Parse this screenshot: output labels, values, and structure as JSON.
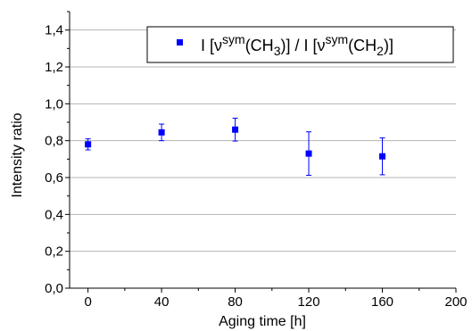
{
  "chart_data": {
    "type": "scatter",
    "title": "",
    "xlabel": "Aging time [h]",
    "ylabel": "Intensity ratio",
    "xlim": [
      -10,
      200
    ],
    "ylim": [
      0,
      1.5
    ],
    "x_ticks": [
      0,
      40,
      80,
      120,
      160,
      200
    ],
    "x_tick_labels": [
      "0",
      "40",
      "80",
      "120",
      "160",
      "200"
    ],
    "y_ticks": [
      0,
      0.2,
      0.4,
      0.6,
      0.8,
      1.0,
      1.2,
      1.4
    ],
    "y_tick_labels": [
      "0,0",
      "0,2",
      "0,4",
      "0,6",
      "0,8",
      "1,0",
      "1,2",
      "1,4"
    ],
    "grid": "horizontal",
    "legend_position": "top-right",
    "series": [
      {
        "name": "I [ν^sym(CH3)] / I [ν^sym(CH2)]",
        "color": "#0000ff",
        "marker": "square",
        "x": [
          0,
          40,
          80,
          120,
          160
        ],
        "y": [
          0.78,
          0.845,
          0.86,
          0.73,
          0.715
        ],
        "error": [
          0.03,
          0.045,
          0.062,
          0.118,
          0.1
        ]
      }
    ],
    "legend": {
      "prefix": "I [ν",
      "sup1": "sym",
      "mid1": "(CH",
      "sub1": "3",
      "mid2": ")] / I [ν",
      "sup2": "sym",
      "mid3": "(CH",
      "sub2": "2",
      "suffix": ")]"
    }
  }
}
